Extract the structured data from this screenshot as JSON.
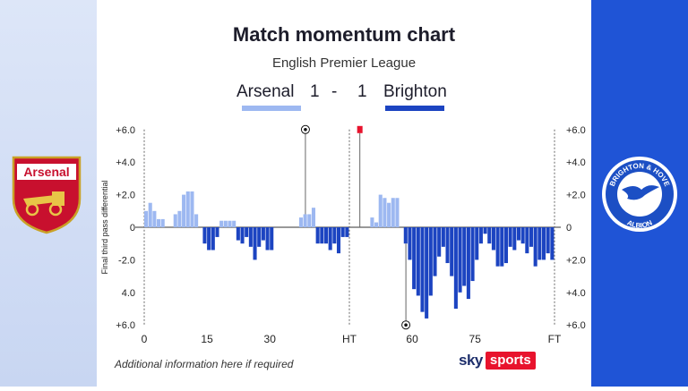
{
  "title": "Match momentum chart",
  "subtitle": "English Premier League",
  "score": {
    "home_team": "Arsenal",
    "home_goals": "1",
    "separator": "-",
    "away_goals": "1",
    "away_team": "Brighton"
  },
  "colors": {
    "home": "#9db8f1",
    "away": "#1c44c1",
    "red_card": "#e8132d",
    "brand_red": "#e8132d",
    "away_panel": "#1f54d6"
  },
  "badges": {
    "home": {
      "name": "Arsenal",
      "icon": "arsenal-crest"
    },
    "away": {
      "line1": "BRIGHTON & HOVE",
      "line2": "ALBION",
      "icon": "brighton-crest"
    }
  },
  "footer": {
    "note": "Additional information here if required",
    "brand_sky": "sky",
    "brand_sports": "sports"
  },
  "chart_data": {
    "type": "bar",
    "ylabel": "Final third pass differential",
    "ylim": [
      -6,
      6
    ],
    "y_ticks_left": [
      "+6.0",
      "+4.0",
      "+2.0",
      "0",
      "-2.0",
      "4.0",
      "+6.0"
    ],
    "y_ticks_right": [
      "+6.0",
      "+4.0",
      "+2.0",
      "0",
      "+2.0",
      "+4.0",
      "+6.0"
    ],
    "y_tick_values": [
      6,
      4,
      2,
      0,
      -2,
      -4,
      -6
    ],
    "x_ticks": [
      {
        "label": "0",
        "minute": 0
      },
      {
        "label": "15",
        "minute": 15
      },
      {
        "label": "30",
        "minute": 30
      },
      {
        "label": "HT",
        "minute": 49
      },
      {
        "label": "60",
        "minute": 64
      },
      {
        "label": "75",
        "minute": 79
      },
      {
        "label": "FT",
        "minute": 98
      }
    ],
    "x_range": [
      0,
      98
    ],
    "series": [
      {
        "name": "Arsenal",
        "color": "#9db8f1",
        "values": [
          1.0,
          1.5,
          1.0,
          0.5,
          0.5,
          0,
          0,
          0.8,
          1.0,
          2.0,
          2.2,
          2.2,
          0.8,
          0,
          0,
          0,
          0,
          0,
          0.4,
          0.4,
          0.4,
          0.4,
          0,
          0,
          0,
          0,
          0,
          0,
          0,
          0,
          0,
          0,
          0,
          0,
          0,
          0,
          0,
          0.6,
          0.8,
          0.8,
          1.2,
          0,
          0,
          0,
          0,
          0,
          0,
          0,
          0,
          0,
          0,
          0,
          0,
          0,
          0.6,
          0.3,
          2.0,
          1.8,
          1.5,
          1.8,
          1.8,
          0,
          0,
          0,
          0,
          0,
          0,
          0,
          0,
          0,
          0,
          0,
          0,
          0,
          0,
          0,
          0,
          0,
          0,
          0,
          0,
          0,
          0,
          0,
          0,
          0,
          0,
          0,
          0,
          0,
          0,
          0,
          0,
          0,
          0,
          0,
          0,
          0
        ]
      },
      {
        "name": "Brighton",
        "color": "#1c44c1",
        "values": [
          0,
          0,
          0,
          0,
          0,
          0,
          0,
          0,
          0,
          0,
          0,
          0,
          0,
          0,
          -1.0,
          -1.4,
          -1.4,
          -0.6,
          0,
          0,
          0,
          0,
          -0.8,
          -1.0,
          -0.6,
          -1.2,
          -2.0,
          -1.2,
          -0.8,
          -1.4,
          -1.4,
          0,
          0,
          0,
          0,
          0,
          0,
          0,
          0,
          0,
          0,
          -1.0,
          -1.0,
          -1.0,
          -1.4,
          -1.0,
          -1.6,
          -0.6,
          -0.6,
          0,
          0,
          0,
          0,
          0,
          0,
          0,
          0,
          0,
          0,
          0,
          0,
          0,
          -1.0,
          -2.0,
          -3.8,
          -4.2,
          -5.2,
          -5.6,
          -4.2,
          -3.0,
          -1.8,
          -1.2,
          -2.2,
          -3.0,
          -5.0,
          -4.0,
          -3.6,
          -4.4,
          -3.3,
          -2.0,
          -1.0,
          -0.4,
          -1.0,
          -1.4,
          -2.4,
          -2.4,
          -2.2,
          -1.2,
          -1.4,
          -0.8,
          -1.0,
          -1.6,
          -1.2,
          -2.4,
          -2.0,
          -2.0,
          -1.6,
          -2.0
        ]
      }
    ],
    "events": [
      {
        "type": "goal",
        "team": "Arsenal",
        "minute": 38.5,
        "value": 6.0,
        "icon": "football-icon"
      },
      {
        "type": "red_card",
        "team": "Arsenal",
        "minute": 51.5,
        "value": 6.0,
        "icon": "red-card-icon"
      },
      {
        "type": "goal",
        "team": "Brighton",
        "minute": 62.5,
        "value": -6.0,
        "icon": "football-icon"
      }
    ]
  }
}
